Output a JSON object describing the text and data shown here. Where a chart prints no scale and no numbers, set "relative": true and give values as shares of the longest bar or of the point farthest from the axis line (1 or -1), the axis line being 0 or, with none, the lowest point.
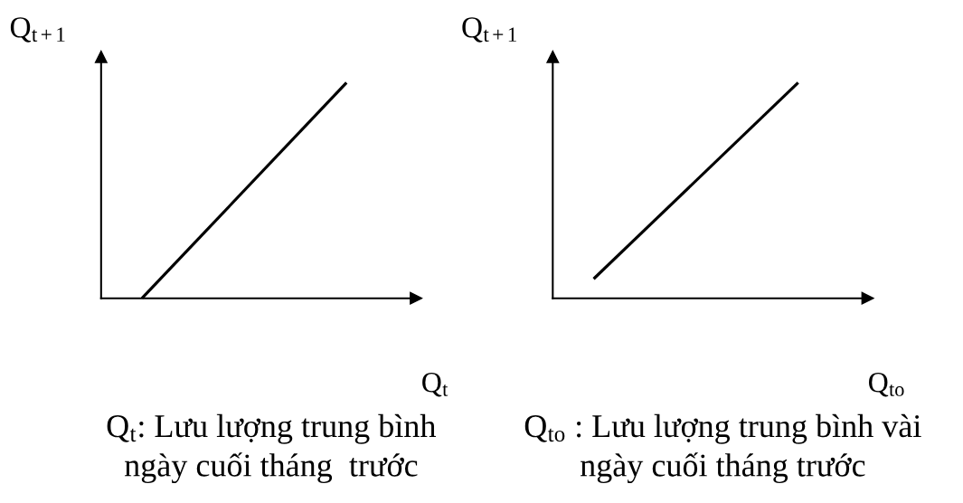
{
  "chart_data": [
    {
      "type": "line",
      "ylabel": "Q$_{t+1}$",
      "xlabel": "Q$_{t}$",
      "categories": [
        null,
        null
      ],
      "relative": true,
      "series": [
        {
          "color": "#000000",
          "values": [
            0,
            1
          ]
        }
      ],
      "annotations": [
        "Q$_{t}$: Lưu lượng trung bình\nngày cuối tháng  trước"
      ]
    },
    {
      "type": "line",
      "ylabel": "Q$_{t+1}$",
      "xlabel": "Q$_{to}$",
      "categories": [
        null,
        null
      ],
      "relative": true,
      "series": [
        {
          "color": "#000000",
          "values": [
            0.09,
            1
          ]
        }
      ],
      "annotations": [
        "Q$_{to}$ : Lưu lượng trung bình vài\nngày cuối tháng trước"
      ]
    }
  ]
}
